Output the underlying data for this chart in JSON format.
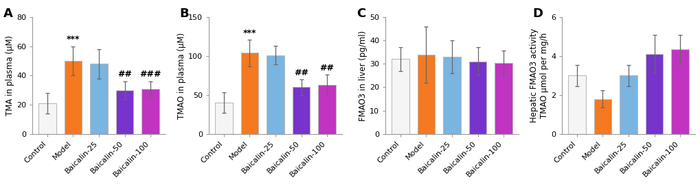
{
  "panels": [
    {
      "label": "A",
      "ylabel": "TMA in plasma (μM)",
      "ylim": [
        0,
        80
      ],
      "yticks": [
        0,
        20,
        40,
        60,
        80
      ],
      "categories": [
        "Control",
        "Model",
        "Baicalin-25",
        "Baicalin-50",
        "Baicalin-100"
      ],
      "values": [
        21,
        50,
        48,
        30,
        31
      ],
      "errors": [
        7,
        10,
        10,
        6,
        5
      ],
      "colors": [
        "#f5f5f5",
        "#f47920",
        "#7ab4e0",
        "#7733cc",
        "#c133c1"
      ],
      "annotations": [
        {
          "bar": 1,
          "text": "***",
          "fontsize": 9
        },
        {
          "bar": 3,
          "text": "##",
          "fontsize": 9
        },
        {
          "bar": 4,
          "text": "###",
          "fontsize": 9
        }
      ]
    },
    {
      "label": "B",
      "ylabel": "TMAO in plasma (μM)",
      "ylim": [
        0,
        150
      ],
      "yticks": [
        0,
        50,
        100,
        150
      ],
      "categories": [
        "Control",
        "Model",
        "Baicalin-25",
        "Baicalin-50",
        "Baicalin-100"
      ],
      "values": [
        40,
        104,
        101,
        60,
        63
      ],
      "errors": [
        13,
        17,
        12,
        10,
        13
      ],
      "colors": [
        "#f5f5f5",
        "#f47920",
        "#7ab4e0",
        "#7733cc",
        "#c133c1"
      ],
      "annotations": [
        {
          "bar": 1,
          "text": "***",
          "fontsize": 9
        },
        {
          "bar": 3,
          "text": "##",
          "fontsize": 9
        },
        {
          "bar": 4,
          "text": "##",
          "fontsize": 9
        }
      ]
    },
    {
      "label": "C",
      "ylabel": "FMAO3 in liver (pg/ml)",
      "ylim": [
        0,
        50
      ],
      "yticks": [
        0,
        10,
        20,
        30,
        40,
        50
      ],
      "categories": [
        "Control",
        "Model",
        "Baicalin-25",
        "Baicalin-50",
        "Baicalin-100"
      ],
      "values": [
        32,
        34,
        33,
        31,
        30.5
      ],
      "errors": [
        5,
        12,
        7,
        6,
        5
      ],
      "colors": [
        "#f5f5f5",
        "#f47920",
        "#7ab4e0",
        "#7733cc",
        "#c133c1"
      ],
      "annotations": []
    },
    {
      "label": "D",
      "ylabel": "Hepatic FMAO3 activity\nTMAO μmol per mg/h",
      "ylim": [
        0,
        6
      ],
      "yticks": [
        0,
        2,
        4,
        6
      ],
      "categories": [
        "Control",
        "Model",
        "Baicalin-25",
        "Baicalin-50",
        "Baicalin-100"
      ],
      "values": [
        3.0,
        1.8,
        3.0,
        4.1,
        4.35
      ],
      "errors": [
        0.55,
        0.45,
        0.55,
        1.0,
        0.75
      ],
      "colors": [
        "#f5f5f5",
        "#f47920",
        "#7ab4e0",
        "#7733cc",
        "#c133c1"
      ],
      "annotations": []
    }
  ],
  "edge_color": "#bbbbbb",
  "bar_width": 0.68,
  "background_color": "#ffffff",
  "ylabel_fontsize": 8.5,
  "tick_fontsize": 8,
  "annotation_fontsize": 9,
  "panel_label_fontsize": 13
}
